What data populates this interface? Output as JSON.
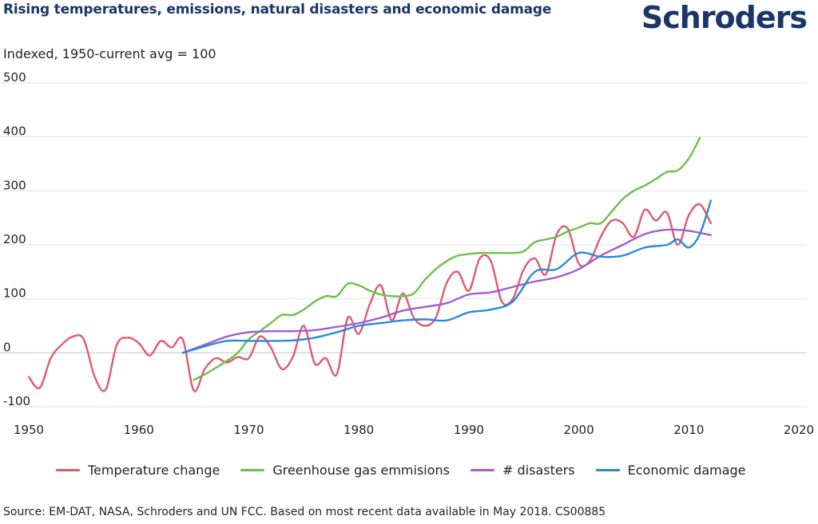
{
  "header": {
    "title": "Rising temperatures, emissions, natural disasters and economic damage",
    "logo": "Schroders"
  },
  "footer": {
    "source": "Source: EM-DAT, NASA, Schroders and UN FCC. Based on most recent data available in May 2018. CS00885"
  },
  "chart_data": {
    "type": "line",
    "title": "Rising temperatures, emissions, natural disasters and economic damage",
    "ylabel": "Indexed, 1950-current avg = 100",
    "xlabel": "",
    "xlim": [
      1950,
      2020
    ],
    "ylim": [
      -100,
      500
    ],
    "x_ticks": [
      1950,
      1960,
      1970,
      1980,
      1990,
      2000,
      2010,
      2020
    ],
    "y_ticks": [
      500,
      400,
      300,
      200,
      100,
      0,
      -100
    ],
    "grid": "horizontal",
    "legend_position": "bottom",
    "series": [
      {
        "name": "Temperature change",
        "color": "#e05a6e",
        "points": [
          [
            1950,
            -45
          ],
          [
            1951,
            -65
          ],
          [
            1952,
            -10
          ],
          [
            1953,
            15
          ],
          [
            1954,
            30
          ],
          [
            1955,
            25
          ],
          [
            1956,
            -45
          ],
          [
            1957,
            -68
          ],
          [
            1958,
            15
          ],
          [
            1959,
            28
          ],
          [
            1960,
            18
          ],
          [
            1961,
            -5
          ],
          [
            1962,
            22
          ],
          [
            1963,
            10
          ],
          [
            1964,
            25
          ],
          [
            1965,
            -70
          ],
          [
            1966,
            -30
          ],
          [
            1967,
            -10
          ],
          [
            1968,
            -18
          ],
          [
            1969,
            -8
          ],
          [
            1970,
            -10
          ],
          [
            1971,
            30
          ],
          [
            1972,
            10
          ],
          [
            1973,
            -30
          ],
          [
            1974,
            -8
          ],
          [
            1975,
            50
          ],
          [
            1976,
            -20
          ],
          [
            1977,
            -10
          ],
          [
            1978,
            -40
          ],
          [
            1979,
            65
          ],
          [
            1980,
            35
          ],
          [
            1981,
            90
          ],
          [
            1982,
            125
          ],
          [
            1983,
            60
          ],
          [
            1984,
            110
          ],
          [
            1985,
            65
          ],
          [
            1986,
            50
          ],
          [
            1987,
            65
          ],
          [
            1988,
            130
          ],
          [
            1989,
            150
          ],
          [
            1990,
            115
          ],
          [
            1991,
            175
          ],
          [
            1992,
            170
          ],
          [
            1993,
            95
          ],
          [
            1994,
            100
          ],
          [
            1995,
            155
          ],
          [
            1996,
            175
          ],
          [
            1997,
            145
          ],
          [
            1998,
            220
          ],
          [
            1999,
            230
          ],
          [
            2000,
            165
          ],
          [
            2001,
            170
          ],
          [
            2002,
            215
          ],
          [
            2003,
            245
          ],
          [
            2004,
            240
          ],
          [
            2005,
            215
          ],
          [
            2006,
            265
          ],
          [
            2007,
            245
          ],
          [
            2008,
            260
          ],
          [
            2009,
            200
          ],
          [
            2010,
            255
          ],
          [
            2011,
            275
          ],
          [
            2012,
            240
          ]
        ]
      },
      {
        "name": "Greenhouse gas emmisions",
        "color": "#6cc04a",
        "points": [
          [
            1965,
            -50
          ],
          [
            1966,
            -40
          ],
          [
            1967,
            -28
          ],
          [
            1968,
            -15
          ],
          [
            1969,
            0
          ],
          [
            1970,
            25
          ],
          [
            1971,
            40
          ],
          [
            1972,
            55
          ],
          [
            1973,
            70
          ],
          [
            1974,
            70
          ],
          [
            1975,
            80
          ],
          [
            1976,
            95
          ],
          [
            1977,
            105
          ],
          [
            1978,
            105
          ],
          [
            1979,
            128
          ],
          [
            1980,
            125
          ],
          [
            1981,
            115
          ],
          [
            1982,
            108
          ],
          [
            1983,
            105
          ],
          [
            1984,
            105
          ],
          [
            1985,
            110
          ],
          [
            1986,
            135
          ],
          [
            1987,
            155
          ],
          [
            1988,
            170
          ],
          [
            1989,
            180
          ],
          [
            1990,
            183
          ],
          [
            1991,
            185
          ],
          [
            1992,
            185
          ],
          [
            1993,
            185
          ],
          [
            1994,
            185
          ],
          [
            1995,
            188
          ],
          [
            1996,
            205
          ],
          [
            1997,
            210
          ],
          [
            1998,
            215
          ],
          [
            1999,
            225
          ],
          [
            2000,
            232
          ],
          [
            2001,
            240
          ],
          [
            2002,
            240
          ],
          [
            2003,
            262
          ],
          [
            2004,
            285
          ],
          [
            2005,
            300
          ],
          [
            2006,
            310
          ],
          [
            2007,
            322
          ],
          [
            2008,
            335
          ],
          [
            2009,
            338
          ],
          [
            2010,
            360
          ],
          [
            2011,
            398
          ]
        ]
      },
      {
        "name": "# disasters",
        "color": "#a65ccc",
        "points": [
          [
            1964,
            0
          ],
          [
            1966,
            15
          ],
          [
            1968,
            30
          ],
          [
            1970,
            38
          ],
          [
            1972,
            40
          ],
          [
            1974,
            40
          ],
          [
            1976,
            42
          ],
          [
            1978,
            48
          ],
          [
            1980,
            55
          ],
          [
            1982,
            65
          ],
          [
            1984,
            78
          ],
          [
            1986,
            85
          ],
          [
            1988,
            92
          ],
          [
            1990,
            108
          ],
          [
            1992,
            112
          ],
          [
            1994,
            122
          ],
          [
            1996,
            132
          ],
          [
            1998,
            140
          ],
          [
            2000,
            155
          ],
          [
            2002,
            180
          ],
          [
            2004,
            200
          ],
          [
            2006,
            220
          ],
          [
            2008,
            228
          ],
          [
            2010,
            226
          ],
          [
            2012,
            218
          ]
        ]
      },
      {
        "name": "Economic damage",
        "color": "#2a8ad6",
        "points": [
          [
            1964,
            0
          ],
          [
            1966,
            12
          ],
          [
            1968,
            22
          ],
          [
            1970,
            22
          ],
          [
            1972,
            22
          ],
          [
            1974,
            23
          ],
          [
            1976,
            28
          ],
          [
            1978,
            38
          ],
          [
            1980,
            50
          ],
          [
            1982,
            55
          ],
          [
            1984,
            60
          ],
          [
            1986,
            62
          ],
          [
            1988,
            60
          ],
          [
            1990,
            75
          ],
          [
            1992,
            80
          ],
          [
            1994,
            95
          ],
          [
            1996,
            150
          ],
          [
            1998,
            155
          ],
          [
            2000,
            185
          ],
          [
            2002,
            178
          ],
          [
            2004,
            180
          ],
          [
            2006,
            195
          ],
          [
            2008,
            200
          ],
          [
            2009,
            210
          ],
          [
            2010,
            195
          ],
          [
            2011,
            220
          ],
          [
            2012,
            282
          ]
        ]
      }
    ]
  }
}
